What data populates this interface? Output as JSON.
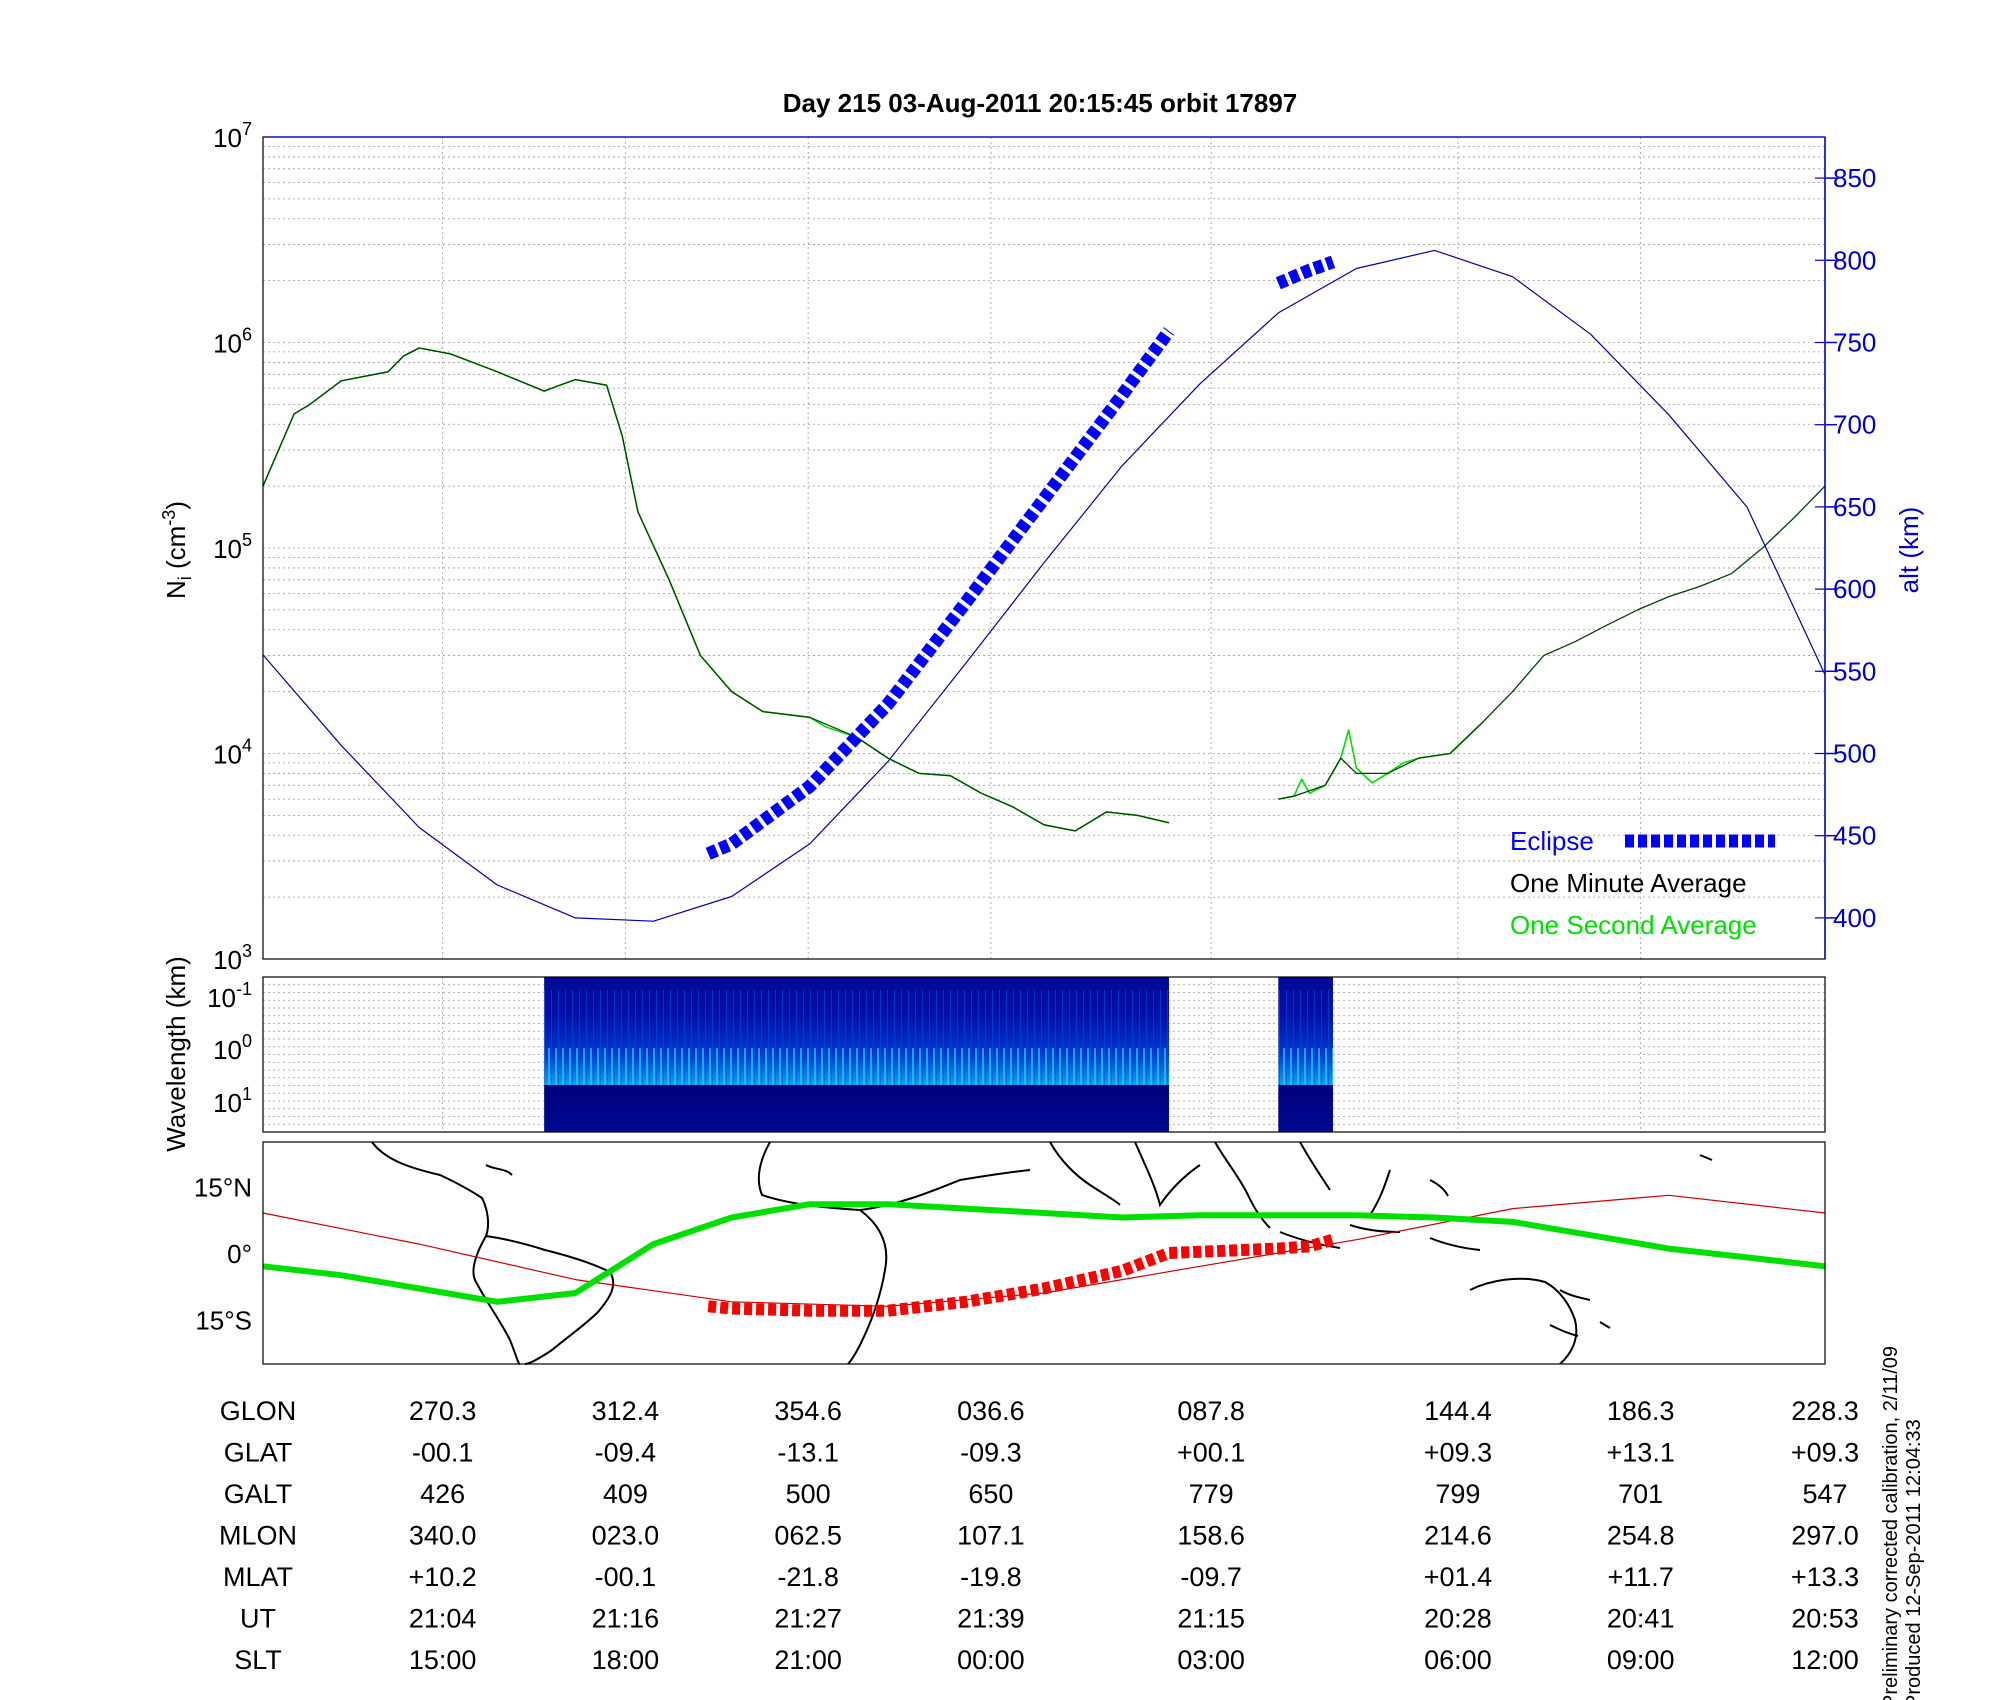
{
  "title": "Day 215  03-Aug-2011 20:15:45   orbit 17897",
  "footer": {
    "line1": "Preliminary corrected calibration, 2/11/09",
    "line2": "Produced 12-Sep-2011 12:04:33"
  },
  "colors": {
    "eclipse": "#0000ff",
    "minute_avg": "#000000",
    "second_avg": "#00e000",
    "altitude": "#0000aa",
    "ground_track_day": "#00e000",
    "ground_track_night": "#ff0000",
    "spectrogram_bg": "#00008f"
  },
  "chart_data": [
    {
      "type": "line",
      "name": "density-panel",
      "ylabel_left": "Ni (cm-3)",
      "ylabel_right": "alt (km)",
      "y_scale_left": "log",
      "ylim_left": [
        1000,
        10000000
      ],
      "ylim_right": [
        375,
        875
      ],
      "xlim": [
        0,
        1
      ],
      "yticks_left": [
        "10^3",
        "10^4",
        "10^5",
        "10^6",
        "10^7"
      ],
      "yticks_right": [
        400,
        450,
        500,
        550,
        600,
        650,
        700,
        750,
        800,
        850
      ],
      "grid": true,
      "legend": {
        "placement": "bottom-right",
        "entries": [
          "Eclipse",
          "One Minute Average",
          "One Second Average"
        ]
      },
      "series": [
        {
          "name": "One Minute Average",
          "axis": "left",
          "segments": [
            {
              "x": [
                0.0,
                0.02,
                0.03,
                0.05,
                0.08,
                0.09,
                0.1,
                0.12,
                0.15,
                0.18,
                0.19,
                0.2,
                0.22,
                0.23,
                0.24,
                0.26,
                0.28,
                0.3,
                0.32,
                0.35,
                0.38,
                0.4,
                0.42,
                0.44,
                0.46,
                0.48,
                0.5,
                0.52,
                0.54,
                0.56,
                0.58
              ],
              "y": [
                200000,
                450000,
                500000,
                650000,
                720000,
                860000,
                940000,
                880000,
                720000,
                580000,
                620000,
                660000,
                620000,
                350000,
                150000,
                70000,
                30000,
                20000,
                16000,
                15000,
                12000,
                9500,
                8000,
                7800,
                6400,
                5500,
                4500,
                4200,
                5200,
                5000,
                4600
              ]
            },
            {
              "x": [
                0.65,
                0.66,
                0.68,
                0.69,
                0.7,
                0.72,
                0.74,
                0.76,
                0.78,
                0.8,
                0.82,
                0.84,
                0.86,
                0.88,
                0.9,
                0.92,
                0.94,
                0.96,
                0.98,
                1.0
              ],
              "y": [
                6000,
                6200,
                7000,
                9500,
                8000,
                8000,
                9500,
                10000,
                14000,
                20000,
                30000,
                35000,
                42000,
                50000,
                58000,
                65000,
                75000,
                100000,
                140000,
                200000
              ]
            }
          ]
        },
        {
          "name": "One Second Average",
          "axis": "left",
          "segments": [
            {
              "x": [
                0.0,
                0.02,
                0.03,
                0.05,
                0.08,
                0.09,
                0.1,
                0.12,
                0.15,
                0.18,
                0.19,
                0.2,
                0.22,
                0.23,
                0.24,
                0.26,
                0.28,
                0.3,
                0.32,
                0.35,
                0.36,
                0.38,
                0.4,
                0.42,
                0.44,
                0.46,
                0.48,
                0.5,
                0.52,
                0.54,
                0.56,
                0.58
              ],
              "y": [
                200000,
                450000,
                500000,
                650000,
                720000,
                860000,
                940000,
                880000,
                720000,
                580000,
                620000,
                660000,
                620000,
                350000,
                150000,
                70000,
                30000,
                20000,
                16000,
                15000,
                13500,
                12000,
                9500,
                8000,
                7800,
                6400,
                5500,
                4500,
                4200,
                5200,
                5000,
                4600
              ]
            },
            {
              "x": [
                0.65,
                0.66,
                0.665,
                0.67,
                0.68,
                0.69,
                0.695,
                0.7,
                0.71,
                0.72,
                0.73,
                0.74,
                0.76,
                0.78
              ],
              "y": [
                6000,
                6200,
                7500,
                6400,
                7000,
                9500,
                13000,
                8500,
                7200,
                8000,
                9000,
                9500,
                10000,
                14000
              ]
            }
          ]
        },
        {
          "name": "altitude",
          "axis": "right",
          "segments": [
            {
              "x": [
                0.0,
                0.05,
                0.1,
                0.15,
                0.2,
                0.25,
                0.3,
                0.35,
                0.4,
                0.45,
                0.5,
                0.55,
                0.6,
                0.65,
                0.7,
                0.75,
                0.8,
                0.85,
                0.9,
                0.95,
                1.0
              ],
              "y": [
                560,
                505,
                455,
                420,
                400,
                398,
                413,
                445,
                495,
                555,
                616,
                675,
                725,
                768,
                795,
                806,
                790,
                755,
                706,
                650,
                548
              ]
            }
          ]
        },
        {
          "name": "Eclipse",
          "axis": "right",
          "segments": [
            {
              "x": [
                0.285,
                0.3,
                0.35,
                0.4,
                0.45,
                0.5,
                0.55,
                0.58
              ],
              "y": [
                439,
                445,
                480,
                530,
                592,
                655,
                718,
                757
              ]
            },
            {
              "x": [
                0.65,
                0.67,
                0.685
              ],
              "y": [
                786,
                794,
                799
              ]
            }
          ]
        }
      ]
    },
    {
      "type": "heatmap",
      "name": "spectrogram-panel",
      "ylabel": "Wavelength (km)",
      "y_scale": "log",
      "yticks": [
        "10^-1",
        "10^0",
        "10^1"
      ],
      "xlim": [
        0,
        1
      ],
      "data_segments": [
        {
          "x_start": 0.18,
          "x_end": 0.58
        },
        {
          "x_start": 0.65,
          "x_end": 0.685
        }
      ]
    },
    {
      "type": "line",
      "name": "map-panel",
      "ytick_labels": [
        "15°N",
        "0°",
        "15°S"
      ],
      "xlim": [
        0,
        1
      ],
      "ylim": [
        -25,
        25
      ],
      "series": [
        {
          "name": "ground track (day)",
          "x": [
            0.0,
            0.05,
            0.1,
            0.15,
            0.2,
            0.25,
            0.3,
            0.35,
            0.4,
            0.45,
            0.5,
            0.55,
            0.6,
            0.65,
            0.7,
            0.75,
            0.8,
            0.85,
            0.9,
            0.95,
            1.0
          ],
          "y": [
            -3,
            -5,
            -8,
            -11,
            -9,
            2,
            8,
            11,
            11,
            10,
            9,
            8,
            8.5,
            8.5,
            8.5,
            8,
            7,
            4,
            1,
            -1,
            -3
          ]
        },
        {
          "name": "ground track (night)",
          "x": [
            0.285,
            0.3,
            0.35,
            0.4,
            0.45,
            0.5,
            0.55,
            0.58,
            0.65,
            0.67,
            0.685
          ],
          "y": [
            -12,
            -12.5,
            -13,
            -13,
            -11,
            -8,
            -4,
            0,
            1,
            1.5,
            3
          ]
        },
        {
          "name": "magnetic equator",
          "x": [
            0.0,
            0.1,
            0.2,
            0.3,
            0.4,
            0.5,
            0.6,
            0.7,
            0.8,
            0.9,
            1.0
          ],
          "y": [
            9,
            2,
            -6,
            -11,
            -12,
            -9,
            -3,
            3,
            10,
            13,
            9
          ]
        }
      ]
    }
  ],
  "table": {
    "row_labels": [
      "GLON",
      "GLAT",
      "GALT",
      "MLON",
      "MLAT",
      "UT",
      "SLT"
    ],
    "columns": [
      {
        "x": 0.115,
        "values": [
          "270.3",
          "-00.1",
          "426",
          "340.0",
          "+10.2",
          "21:04",
          "15:00"
        ]
      },
      {
        "x": 0.232,
        "values": [
          "312.4",
          "-09.4",
          "409",
          "023.0",
          "-00.1",
          "21:16",
          "18:00"
        ]
      },
      {
        "x": 0.349,
        "values": [
          "354.6",
          "-13.1",
          "500",
          "062.5",
          "-21.8",
          "21:27",
          "21:00"
        ]
      },
      {
        "x": 0.466,
        "values": [
          "036.6",
          "-09.3",
          "650",
          "107.1",
          "-19.8",
          "21:39",
          "00:00"
        ]
      },
      {
        "x": 0.607,
        "values": [
          "087.8",
          "+00.1",
          "779",
          "158.6",
          "-09.7",
          "21:15",
          "03:00"
        ]
      },
      {
        "x": 0.765,
        "values": [
          "144.4",
          "+09.3",
          "799",
          "214.6",
          "+01.4",
          "20:28",
          "06:00"
        ]
      },
      {
        "x": 0.882,
        "values": [
          "186.3",
          "+13.1",
          "701",
          "254.8",
          "+11.7",
          "20:41",
          "09:00"
        ]
      },
      {
        "x": 1.0,
        "values": [
          "228.3",
          "+09.3",
          "547",
          "297.0",
          "+13.3",
          "20:53",
          "12:00"
        ]
      }
    ]
  }
}
